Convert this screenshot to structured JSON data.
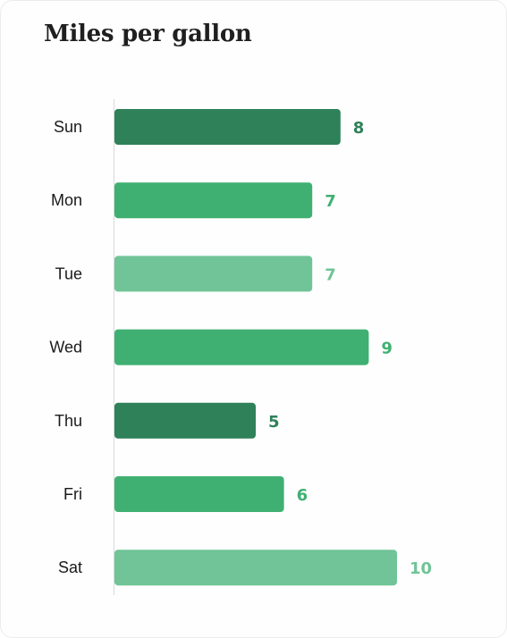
{
  "chart_data": {
    "type": "bar",
    "orientation": "horizontal",
    "title": "Miles per gallon",
    "xlabel": "",
    "ylabel": "",
    "categories": [
      "Sun",
      "Mon",
      "Tue",
      "Wed",
      "Thu",
      "Fri",
      "Sat"
    ],
    "values": [
      8,
      7,
      7,
      9,
      5,
      6,
      10
    ],
    "colors": [
      "#2e8158",
      "#3fb072",
      "#70c497",
      "#3fb072",
      "#2e8158",
      "#3fb072",
      "#70c497"
    ],
    "xlim": [
      0,
      10
    ],
    "grid": false,
    "data_labels": true
  }
}
